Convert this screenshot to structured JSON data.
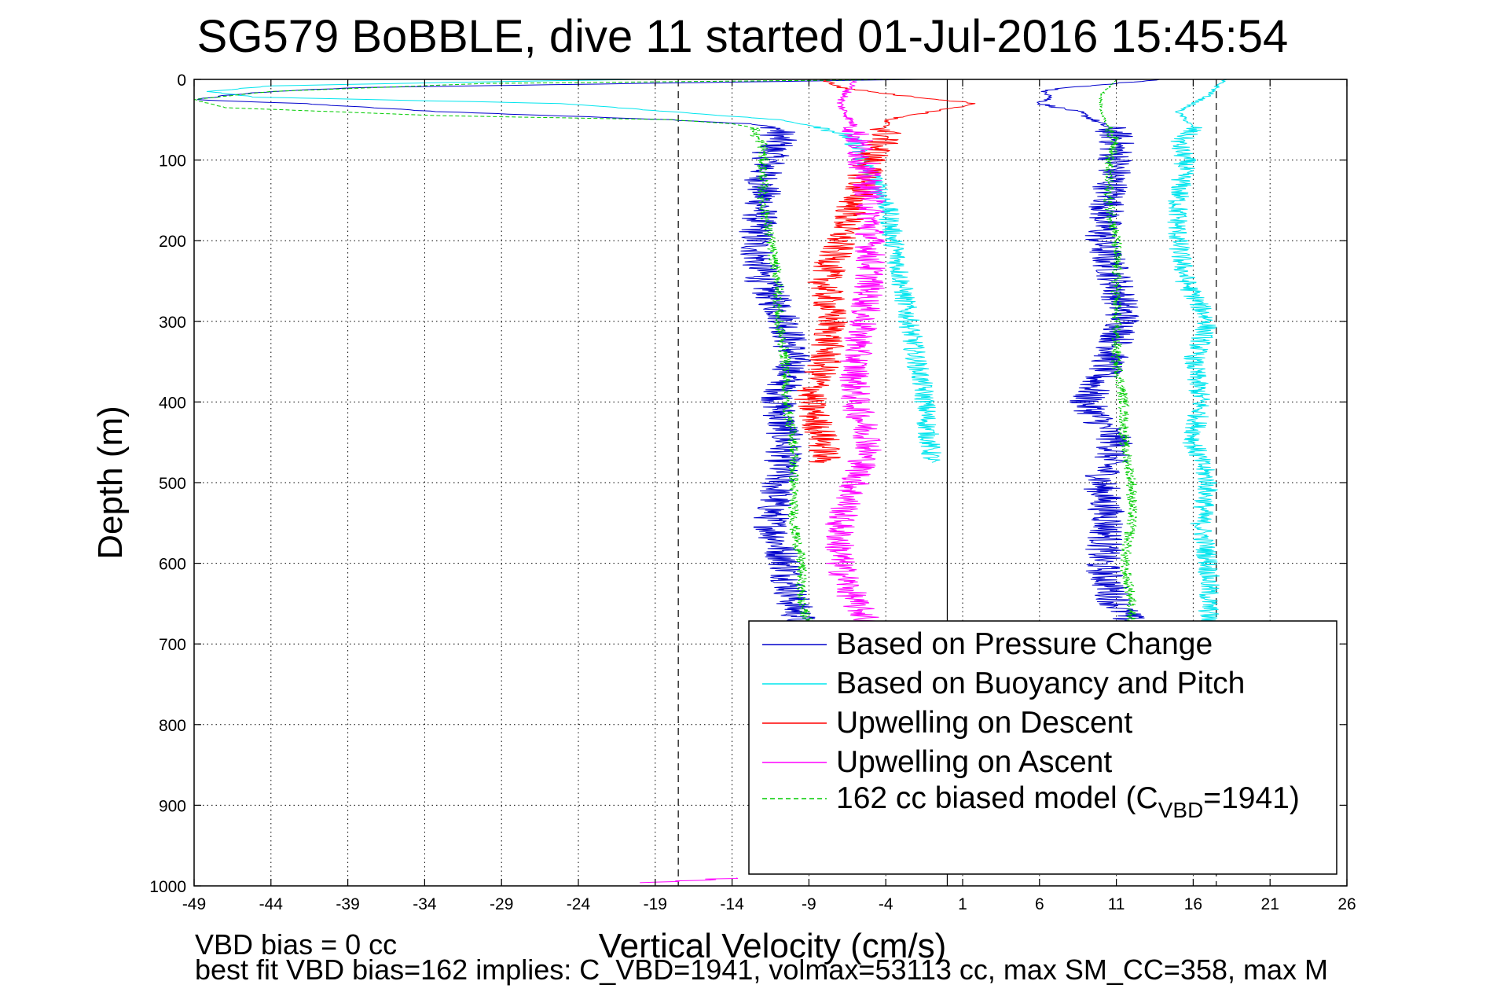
{
  "chart_data": {
    "type": "line",
    "title": "SG579 BoBBLE, dive 11 started 01-Jul-2016 15:45:54",
    "xlabel": "Vertical Velocity (cm/s)",
    "ylabel": "Depth (m)",
    "xlim": [
      -49,
      26
    ],
    "ylim": [
      0,
      1000
    ],
    "y_reversed": true,
    "grid": true,
    "xticks": [
      -49,
      -44,
      -39,
      -34,
      -29,
      -24,
      -19,
      -14,
      -9,
      -4,
      1,
      6,
      11,
      16,
      21,
      26
    ],
    "yticks": [
      0,
      100,
      200,
      300,
      400,
      500,
      600,
      700,
      800,
      900,
      1000
    ],
    "legend": {
      "position": "bottom-right",
      "entries": [
        {
          "name": "Based on Pressure Change",
          "color": "#0000cc",
          "style": "solid"
        },
        {
          "name": "Based on Buoyancy and Pitch",
          "color": "#00e5ee",
          "style": "solid"
        },
        {
          "name": "Upwelling on Descent",
          "color": "#ff0000",
          "style": "solid"
        },
        {
          "name": "Upwelling on Ascent",
          "color": "#ff00ff",
          "style": "solid"
        },
        {
          "name": "162 cc biased model (C",
          "sub": "VBD",
          "suffix": "=1941)",
          "color": "#00cc00",
          "style": "dashed"
        }
      ]
    },
    "reference_lines": [
      {
        "x": -17.5,
        "style": "dashed",
        "color": "#000000"
      },
      {
        "x": 0,
        "style": "solid",
        "color": "#000000"
      },
      {
        "x": 17.5,
        "style": "dashed",
        "color": "#000000"
      }
    ],
    "annotations": [
      "VBD bias = 0 cc",
      "best fit VBD bias=162 implies: C_VBD=1941, volmax=53113 cc, max SM_CC=358, max M"
    ],
    "series": [
      {
        "name": "Based on Pressure Change",
        "color": "#0000cc",
        "segments": [
          {
            "depth": [
              0,
              5,
              10,
              15,
              20,
              25,
              30,
              40,
              50,
              55,
              60,
              70,
              80,
              90,
              100,
              120,
              150,
              200,
              250,
              300,
              350,
              400,
              450,
              500,
              550,
              600,
              650,
              675
            ],
            "x": [
              -2,
              -20,
              -38,
              -44,
              -47,
              -49,
              -42,
              -33,
              -18,
              -13,
              -11,
              -11,
              -11,
              -11.5,
              -11.5,
              -12,
              -12,
              -12.5,
              -12,
              -10.5,
              -10,
              -11,
              -10.5,
              -11,
              -11.5,
              -10.5,
              -10,
              -9.5
            ]
          },
          {
            "depth": [
              0,
              5,
              10,
              15,
              20,
              30,
              40,
              50,
              60,
              70,
              80,
              100,
              150,
              200,
              250,
              300,
              350,
              400,
              450,
              500,
              550,
              600,
              650,
              675
            ],
            "x": [
              14,
              11,
              8,
              6,
              7,
              6,
              8.5,
              9.5,
              10.5,
              11,
              11,
              11,
              10.5,
              10,
              11,
              11.5,
              10.5,
              9,
              11,
              10,
              10.5,
              10,
              11,
              12
            ]
          }
        ],
        "noise": 1.2
      },
      {
        "name": "Based on Buoyancy and Pitch",
        "color": "#00e5ee",
        "segments": [
          {
            "depth": [
              0,
              3,
              8,
              15,
              22,
              30,
              40,
              50,
              60,
              70,
              80,
              100,
              150,
              200,
              250,
              300,
              350,
              390,
              430,
              475
            ],
            "x": [
              -20,
              -30,
              -44,
              -48,
              -45,
              -25,
              -18,
              -11,
              -8,
              -6.5,
              -6,
              -5.5,
              -4,
              -3.5,
              -3,
              -2.5,
              -2,
              -1.5,
              -1.3,
              -1
            ]
          },
          {
            "depth": [
              0,
              20,
              40,
              60,
              80,
              100,
              150,
              200,
              250,
              300,
              350,
              400,
              450,
              500,
              550,
              600,
              650,
              675
            ],
            "x": [
              18,
              17,
              15,
              16,
              15,
              15.5,
              15,
              15,
              15.5,
              17,
              16,
              16.5,
              16,
              17,
              16.5,
              17,
              17,
              17
            ]
          }
        ],
        "noise": 0.7
      },
      {
        "name": "Upwelling on Descent",
        "color": "#ff0000",
        "segments": [
          {
            "depth": [
              0,
              10,
              20,
              30,
              50,
              70,
              100,
              150,
              200,
              250,
              300,
              350,
              400,
              450,
              475
            ],
            "x": [
              -8,
              -7,
              -3,
              2,
              -4,
              -4,
              -5,
              -6,
              -7,
              -8,
              -7.5,
              -8,
              -9,
              -8,
              -8
            ]
          }
        ],
        "noise": 1.1
      },
      {
        "name": "Upwelling on Ascent",
        "color": "#ff00ff",
        "segments": [
          {
            "depth": [
              0,
              30,
              60,
              100,
              150,
              200,
              250,
              300,
              350,
              400,
              450,
              500,
              550,
              600,
              650,
              675
            ],
            "x": [
              -6,
              -7,
              -6,
              -5.5,
              -5,
              -5,
              -5,
              -5.5,
              -6,
              -6,
              -5,
              -6,
              -7,
              -7,
              -6,
              -5
            ]
          },
          {
            "depth": [
              990,
              993,
              996
            ],
            "x": [
              -14,
              -16,
              -20
            ]
          }
        ],
        "noise": 1.0
      },
      {
        "name": "162 cc biased model",
        "color": "#00cc00",
        "dashed": true,
        "segments": [
          {
            "depth": [
              0,
              5,
              15,
              25,
              35,
              45,
              50,
              55,
              60,
              70,
              80,
              100,
              150,
              200,
              250,
              300,
              350,
              400,
              450,
              500,
              550,
              600,
              650,
              675
            ],
            "x": [
              -2,
              -30,
              -44,
              -49,
              -47,
              -33,
              -18,
              -14,
              -12.5,
              -12.5,
              -12,
              -12,
              -12,
              -11.5,
              -11,
              -11,
              -10.5,
              -10.5,
              -10,
              -10,
              -10,
              -9.5,
              -9.5,
              -9
            ]
          },
          {
            "depth": [
              0,
              10,
              20,
              40,
              60,
              80,
              100,
              150,
              200,
              250,
              300,
              350,
              400,
              450,
              500,
              550,
              600,
              650,
              675
            ],
            "x": [
              11,
              10.5,
              10,
              10,
              10.5,
              11,
              10.5,
              10.5,
              11,
              11,
              11,
              11,
              11.5,
              11.5,
              12,
              12,
              11.5,
              12,
              12
            ]
          }
        ],
        "noise": 0.35
      }
    ]
  }
}
